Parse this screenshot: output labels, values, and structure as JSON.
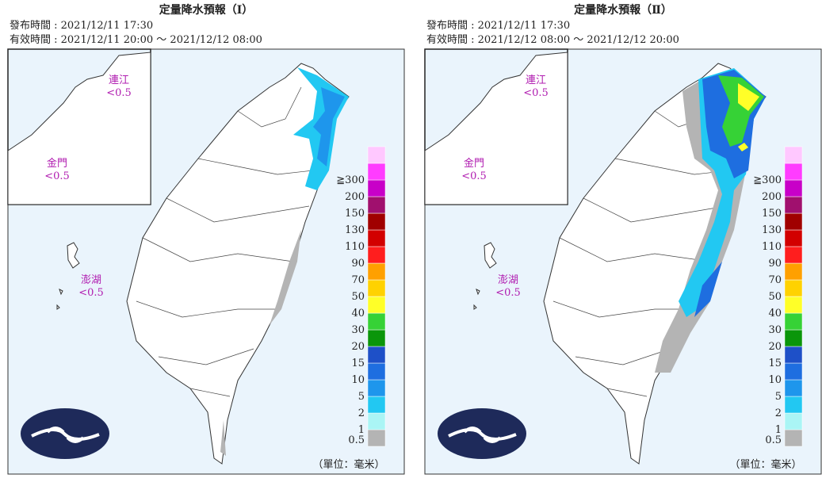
{
  "panels": [
    {
      "title": "定量降水預報（Ⅰ）",
      "issued": "發布時間 : 2021/12/11 17:30",
      "valid": "有效時間 : 2021/12/11 20:00 ～ 2021/12/12 08:00",
      "insets": [
        {
          "name": "連江",
          "value": "<0.5"
        },
        {
          "name": "金門",
          "value": "<0.5"
        },
        {
          "name": "澎湖",
          "value": "<0.5"
        }
      ],
      "unit": "（單位：毫米）"
    },
    {
      "title": "定量降水預報（Ⅱ）",
      "issued": "發布時間 : 2021/12/11 17:30",
      "valid": "有效時間 : 2021/12/12 08:00 ～ 2021/12/12 20:00",
      "insets": [
        {
          "name": "連江",
          "value": "<0.5"
        },
        {
          "name": "金門",
          "value": "<0.5"
        },
        {
          "name": "澎湖",
          "value": "<0.5"
        }
      ],
      "unit": "（單位：毫米）"
    }
  ],
  "legend": {
    "labels": [
      "0.5",
      "1",
      "2",
      "5",
      "10",
      "15",
      "20",
      "30",
      "40",
      "50",
      "70",
      "90",
      "110",
      "130",
      "150",
      "200",
      "≧300"
    ],
    "colors": [
      "#b4b4b4",
      "#aaf5f5",
      "#22c8f2",
      "#1e96ec",
      "#1e6ee0",
      "#1e50c8",
      "#0a960a",
      "#36d236",
      "#ffff28",
      "#ffd200",
      "#ffa000",
      "#ff1e1e",
      "#d20000",
      "#a00000",
      "#a0106e",
      "#c800c8",
      "#ff3cff",
      "#ffc8ff"
    ]
  }
}
